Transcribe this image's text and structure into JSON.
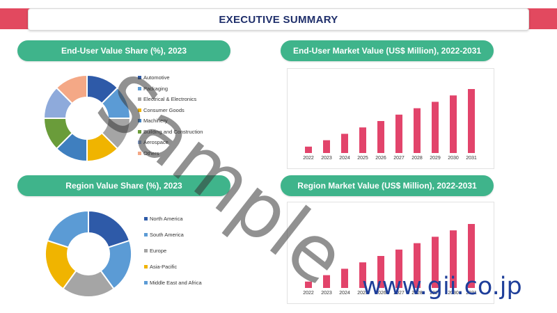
{
  "header": {
    "title": "EXECUTIVE SUMMARY"
  },
  "colors": {
    "header_accent": "#e2495f",
    "panel_header": "#3fb48b",
    "bar": "#e2446b",
    "title_text": "#1f2f6b"
  },
  "panels": {
    "enduser_share_title": "End-User Value Share (%), 2023",
    "enduser_value_title": "End-User Market Value (US$ Million), 2022-2031",
    "region_share_title": "Region Value Share (%), 2023",
    "region_value_title": "Region Market Value (US$ Million), 2022-2031"
  },
  "watermark": {
    "text": "Sample",
    "site": "www.gii.co.jp"
  },
  "chart_data": [
    {
      "type": "pie",
      "title": "End-User Value Share (%), 2023",
      "labels": [
        "Automotive",
        "Packaging",
        "Electrical & Electronics",
        "Consumer Goods",
        "Machinery",
        "Building and Construction",
        "Aerospace",
        "Others"
      ],
      "values": [
        12.5,
        12.5,
        12.5,
        12.5,
        12.5,
        12.5,
        12.5,
        12.5
      ],
      "colors": [
        "#2e5aa8",
        "#5b9bd5",
        "#a5a5a5",
        "#f0b400",
        "#3f7fbf",
        "#6a9c3a",
        "#8eaadb",
        "#f4a886"
      ],
      "legend": "right"
    },
    {
      "type": "bar",
      "title": "End-User Market Value (US$ Million), 2022-2031",
      "categories": [
        "2022",
        "2023",
        "2024",
        "2025",
        "2026",
        "2027",
        "2028",
        "2029",
        "2030",
        "2031"
      ],
      "values": [
        1,
        2,
        3,
        4,
        5,
        6,
        7,
        8,
        9,
        10
      ],
      "color": "#e2446b"
    },
    {
      "type": "pie",
      "title": "Region Value Share (%), 2023",
      "labels": [
        "North America",
        "South America",
        "Europe",
        "Asia-Pacific",
        "Middle East and Africa"
      ],
      "values": [
        20,
        20,
        20,
        20,
        20
      ],
      "colors": [
        "#2e5aa8",
        "#5b9bd5",
        "#a5a5a5",
        "#f0b400",
        "#5b9bd5"
      ],
      "legend": "right"
    },
    {
      "type": "bar",
      "title": "Region Market Value (US$ Million), 2022-2031",
      "categories": [
        "2022",
        "2023",
        "2024",
        "2025",
        "2026",
        "2027",
        "2028",
        "2029",
        "2030",
        "2031"
      ],
      "values": [
        1,
        2,
        3,
        4,
        5,
        6,
        7,
        8,
        9,
        10
      ],
      "color": "#e2446b"
    }
  ]
}
